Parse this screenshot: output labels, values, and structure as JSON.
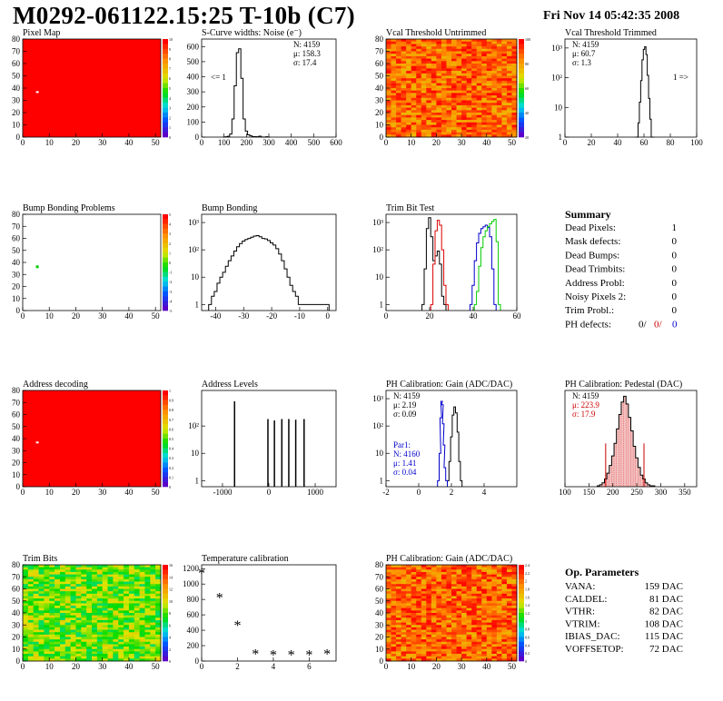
{
  "header": {
    "title": "M0292-061122.15:25 T-10b (C7)",
    "date": "Fri Nov 14 05:42:35 2008"
  },
  "colors": {
    "map_red": "#ff0000",
    "hist_black": "#000000",
    "trim_red": "#dd0000",
    "trim_blue": "#0000cc",
    "trim_green": "#00cc00",
    "pedestal_fill": "#cc0000",
    "gain_blue": "#0000cc"
  },
  "chart_data": [
    {
      "id": "pixel-map",
      "type": "heatmap",
      "title": "Pixel Map",
      "xlim": [
        0,
        52
      ],
      "ylim": [
        0,
        80
      ],
      "xticks": [
        0,
        10,
        20,
        30,
        40,
        50
      ],
      "yticks": [
        0,
        10,
        20,
        30,
        40,
        50,
        60,
        70,
        80
      ],
      "fill": "uniform-red",
      "dead_pixels": [
        [
          5,
          36
        ]
      ],
      "zticks": [
        "10",
        "9",
        "8",
        "7",
        "6",
        "5",
        "4",
        "3",
        "2",
        "1",
        "0"
      ]
    },
    {
      "id": "scurve-noise",
      "type": "histogram",
      "title": "S-Curve widths: Noise (e⁻)",
      "xlim": [
        0,
        600
      ],
      "ylim": [
        0,
        650
      ],
      "xticks": [
        0,
        100,
        200,
        300,
        400,
        500,
        600
      ],
      "yticks": [
        0,
        100,
        200,
        300,
        400,
        500,
        600
      ],
      "stats": [
        "N: 4159",
        "μ: 158.3",
        "σ: 17.4"
      ],
      "side_label": "<= 1",
      "x": [
        100,
        110,
        120,
        130,
        140,
        150,
        160,
        170,
        180,
        190,
        200,
        210,
        220,
        230,
        240,
        250,
        260,
        270,
        280,
        290,
        300
      ],
      "y": [
        0,
        2,
        5,
        20,
        120,
        340,
        560,
        585,
        390,
        120,
        40,
        15,
        8,
        4,
        3,
        2,
        6,
        1,
        0,
        2,
        0
      ]
    },
    {
      "id": "vcal-untrimmed",
      "type": "heatmap",
      "title": "Vcal Threshold Untrimmed",
      "xlim": [
        0,
        52
      ],
      "ylim": [
        0,
        80
      ],
      "xticks": [
        0,
        10,
        20,
        30,
        40,
        50
      ],
      "yticks": [
        0,
        10,
        20,
        30,
        40,
        50,
        60,
        70,
        80
      ],
      "fill": "noise-orange",
      "zticks": [
        "100",
        "80",
        "60",
        "40",
        "20"
      ]
    },
    {
      "id": "vcal-trimmed",
      "type": "histogram",
      "title": "Vcal Threshold Trimmed",
      "log_y": true,
      "xlim": [
        0,
        100
      ],
      "ylim": [
        1,
        2000
      ],
      "xticks": [
        0,
        20,
        40,
        60,
        80,
        100
      ],
      "yticks": [
        "1",
        "10",
        "10²",
        "10³"
      ],
      "stats": [
        "N: 4159",
        "μ: 60.7",
        "σ:  1.3"
      ],
      "side_label": "1 =>",
      "x": [
        54,
        55,
        56,
        57,
        58,
        59,
        60,
        61,
        62,
        63,
        64,
        65,
        66,
        67
      ],
      "y": [
        1,
        1,
        3,
        15,
        80,
        400,
        900,
        1100,
        600,
        120,
        20,
        4,
        1,
        1
      ]
    },
    {
      "id": "bump-map",
      "type": "heatmap",
      "title": "Bump Bonding Problems",
      "xlim": [
        0,
        52
      ],
      "ylim": [
        0,
        80
      ],
      "xticks": [
        0,
        10,
        20,
        30,
        40,
        50
      ],
      "yticks": [
        0,
        10,
        20,
        30,
        40,
        50,
        60,
        70,
        80
      ],
      "fill": "empty",
      "marked_pixels": [
        [
          5,
          36
        ]
      ],
      "zticks": [
        "5",
        "4",
        "3",
        "2",
        "1",
        "0",
        "-1",
        "-2",
        "-3",
        "-4",
        "-5"
      ]
    },
    {
      "id": "bump-bonding",
      "type": "histogram",
      "title": "Bump Bonding",
      "log_y": true,
      "xlim": [
        -45,
        3
      ],
      "ylim": [
        0.6,
        2000
      ],
      "xticks": [
        -40,
        -30,
        -20,
        -10,
        0
      ],
      "yticks": [
        "1",
        "10",
        "10²",
        "10³"
      ],
      "x": [
        -42,
        -41,
        -40,
        -39,
        -38,
        -37,
        -36,
        -35,
        -34,
        -33,
        -32,
        -31,
        -30,
        -29,
        -28,
        -27,
        -26,
        -25,
        -24,
        -23,
        -22,
        -21,
        -20,
        -19,
        -18,
        -17,
        -16,
        -15,
        -14,
        -13,
        -12,
        -11,
        -10,
        0
      ],
      "y": [
        1,
        2,
        3,
        6,
        10,
        15,
        25,
        40,
        60,
        90,
        130,
        170,
        210,
        240,
        260,
        290,
        320,
        330,
        300,
        260,
        250,
        220,
        180,
        150,
        110,
        70,
        40,
        20,
        10,
        5,
        3,
        2,
        1,
        1
      ]
    },
    {
      "id": "trim-bit-test",
      "type": "histogram",
      "title": "Trim Bit Test",
      "log_y": true,
      "xlim": [
        0,
        60
      ],
      "ylim": [
        0.6,
        2000
      ],
      "xticks": [
        0,
        20,
        40,
        60
      ],
      "yticks": [
        "1",
        "10",
        "10²",
        "10³"
      ],
      "series": [
        {
          "color": "black",
          "x": [
            17,
            18,
            19,
            20,
            21,
            22,
            23,
            24,
            25,
            26,
            27
          ],
          "y": [
            1,
            20,
            600,
            1500,
            300,
            40,
            60,
            90,
            30,
            2,
            1
          ]
        },
        {
          "color": "red",
          "x": [
            21,
            22,
            23,
            24,
            25,
            26,
            27,
            28
          ],
          "y": [
            1,
            30,
            500,
            1200,
            800,
            100,
            5,
            1
          ]
        },
        {
          "color": "blue",
          "x": [
            39,
            40,
            41,
            42,
            43,
            44,
            45,
            46,
            47,
            48,
            49,
            50
          ],
          "y": [
            1,
            5,
            40,
            180,
            400,
            600,
            700,
            800,
            650,
            300,
            20,
            1
          ]
        },
        {
          "color": "green",
          "x": [
            41,
            42,
            43,
            44,
            45,
            46,
            47,
            48,
            49,
            50,
            51,
            52
          ],
          "y": [
            1,
            3,
            25,
            120,
            300,
            500,
            700,
            900,
            1100,
            1300,
            200,
            1
          ]
        }
      ]
    },
    {
      "id": "address-decoding",
      "type": "heatmap",
      "title": "Address decoding",
      "xlim": [
        0,
        52
      ],
      "ylim": [
        0,
        80
      ],
      "xticks": [
        0,
        10,
        20,
        30,
        40,
        50
      ],
      "yticks": [
        0,
        10,
        20,
        30,
        40,
        50,
        60,
        70,
        80
      ],
      "fill": "uniform-red",
      "dead_pixels": [
        [
          5,
          36
        ]
      ],
      "zticks": [
        "1",
        "0.9",
        "0.8",
        "0.7",
        "0.6",
        "0.5",
        "0.4",
        "0.3",
        "0.2",
        "0.1",
        "0"
      ]
    },
    {
      "id": "address-levels",
      "type": "histogram",
      "title": "Address Levels",
      "log_y": true,
      "xlim": [
        -1450,
        1450
      ],
      "ylim": [
        0.6,
        2000
      ],
      "xticks": [
        -1000,
        0,
        1000
      ],
      "yticks": [
        "1",
        "10",
        "10²"
      ],
      "peaks_x": [
        -740,
        -20,
        120,
        280,
        430,
        580,
        760
      ],
      "peaks_y": [
        800,
        180,
        160,
        180,
        180,
        170,
        180
      ]
    },
    {
      "id": "ph-gain",
      "type": "histogram",
      "title": "PH Calibration: Gain (ADC/DAC)",
      "log_y": true,
      "xlim": [
        -2,
        6
      ],
      "ylim": [
        0.6,
        2000
      ],
      "xticks": [
        -2,
        0,
        2,
        4
      ],
      "yticks": [
        "1",
        "10",
        "10²",
        "10³"
      ],
      "stats": [
        "N: 4159",
        "μ: 2.19",
        "σ: 0.09"
      ],
      "par1_stats": [
        "Par1:",
        "N: 4160",
        "μ: 1.41",
        "σ: 0.04"
      ],
      "series": [
        {
          "color": "black",
          "x": [
            1.8,
            1.9,
            2.0,
            2.1,
            2.2,
            2.3,
            2.4,
            2.5,
            2.6
          ],
          "y": [
            1,
            5,
            40,
            250,
            500,
            300,
            60,
            5,
            1
          ]
        },
        {
          "color": "blue",
          "x": [
            1.2,
            1.3,
            1.35,
            1.4,
            1.45,
            1.5,
            1.55,
            1.6,
            1.7
          ],
          "y": [
            1,
            10,
            200,
            800,
            600,
            120,
            20,
            3,
            1
          ]
        }
      ]
    },
    {
      "id": "ph-pedestal",
      "type": "histogram",
      "title": "PH Calibration: Pedestal (DAC)",
      "xlim": [
        100,
        375
      ],
      "ylim": [
        0,
        100
      ],
      "xticks": [
        100,
        150,
        200,
        250,
        300,
        350
      ],
      "yticks": [],
      "stats": [
        "N: 4159",
        "μ: 223.9",
        "σ: 17.9"
      ],
      "cut_lines": [
        185,
        265
      ],
      "x": [
        170,
        175,
        180,
        185,
        190,
        195,
        200,
        205,
        210,
        215,
        220,
        225,
        230,
        235,
        240,
        245,
        250,
        255,
        260,
        265,
        270,
        275,
        280,
        285
      ],
      "y": [
        1,
        2,
        4,
        8,
        14,
        22,
        32,
        45,
        60,
        75,
        88,
        94,
        86,
        72,
        58,
        42,
        30,
        20,
        12,
        8,
        4,
        2,
        1,
        1
      ]
    },
    {
      "id": "trim-bits-map",
      "type": "heatmap",
      "title": "Trim Bits",
      "xlim": [
        0,
        52
      ],
      "ylim": [
        0,
        80
      ],
      "xticks": [
        0,
        10,
        20,
        30,
        40,
        50
      ],
      "yticks": [
        0,
        10,
        20,
        30,
        40,
        50,
        60,
        70,
        80
      ],
      "fill": "noise-green",
      "zticks": [
        "16",
        "14",
        "12",
        "10",
        "8",
        "6",
        "4",
        "2",
        "0"
      ]
    },
    {
      "id": "temperature-calibration",
      "type": "scatter",
      "title": "Temperature calibration",
      "xlim": [
        0,
        7.5
      ],
      "ylim": [
        0,
        1250
      ],
      "xticks": [
        0,
        2,
        4,
        6
      ],
      "yticks": [
        0,
        200,
        400,
        600,
        800,
        1000,
        1200
      ],
      "x": [
        0,
        1,
        2,
        3,
        4,
        5,
        6,
        7
      ],
      "y": [
        1150,
        830,
        470,
        100,
        90,
        90,
        90,
        100
      ]
    },
    {
      "id": "ph-gain-map",
      "type": "heatmap",
      "title": "PH Calibration: Gain (ADC/DAC)",
      "xlim": [
        0,
        52
      ],
      "ylim": [
        0,
        80
      ],
      "xticks": [
        0,
        10,
        20,
        30,
        40,
        50
      ],
      "yticks": [
        0,
        10,
        20,
        30,
        40,
        50,
        60,
        70,
        80
      ],
      "fill": "noise-orange",
      "zticks": [
        "2.4",
        "2.2",
        "2",
        "1.8",
        "1.6",
        "1.4",
        "1.2",
        "1",
        "0.8",
        "0.6",
        "0.4",
        "0.2",
        "0"
      ]
    }
  ],
  "summary": {
    "title": "Summary",
    "rows": [
      {
        "label": "Dead Pixels:",
        "value": "1"
      },
      {
        "label": "Mask defects:",
        "value": "0"
      },
      {
        "label": "Dead Bumps:",
        "value": "0"
      },
      {
        "label": "Dead Trimbits:",
        "value": "0"
      },
      {
        "label": "Address Probl:",
        "value": "0"
      },
      {
        "label": "Noisy Pixels 2:",
        "value": "0"
      },
      {
        "label": "Trim Probl.:",
        "value": "0"
      }
    ],
    "ph_label": "PH defects:",
    "ph_values": [
      "0/",
      "0/",
      "0"
    ]
  },
  "op_parameters": {
    "title": "Op. Parameters",
    "rows": [
      {
        "label": "VANA:",
        "value": "159 DAC"
      },
      {
        "label": "CALDEL:",
        "value": "81 DAC"
      },
      {
        "label": "VTHR:",
        "value": "82 DAC"
      },
      {
        "label": "VTRIM:",
        "value": "108 DAC"
      },
      {
        "label": "IBIAS_DAC:",
        "value": "115 DAC"
      },
      {
        "label": "VOFFSETOP:",
        "value": "72 DAC"
      }
    ]
  }
}
